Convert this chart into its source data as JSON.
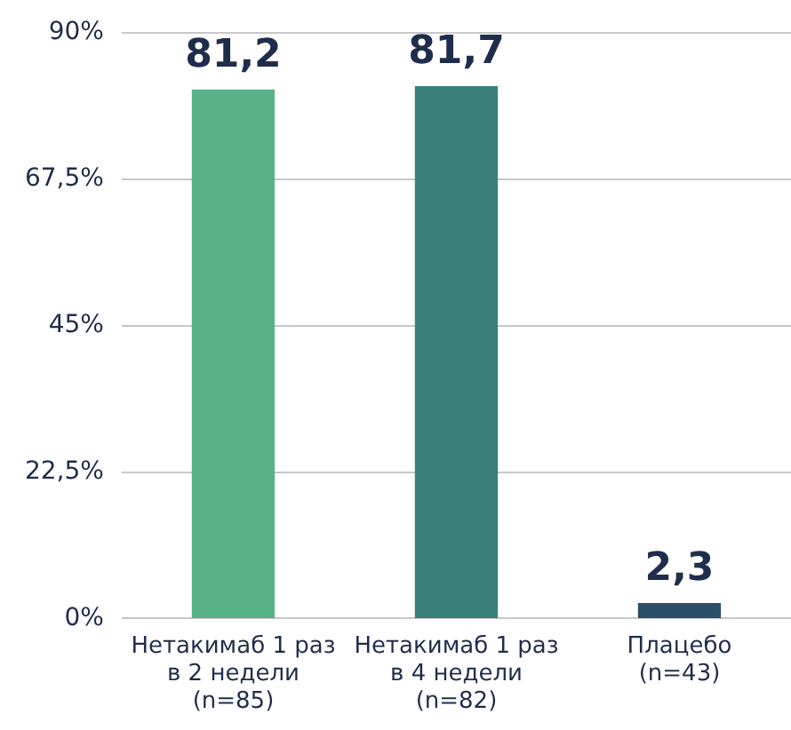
{
  "chart_data": {
    "type": "bar",
    "categories": [
      "Нетакимаб 1 раз\nв 2 недели\n(n=85)",
      "Нетакимаб 1 раз\nв 4 недели\n(n=82)",
      "Плацебо\n(n=43)"
    ],
    "values": [
      81.2,
      81.7,
      2.3
    ],
    "colors": [
      "#58b287",
      "#3b7f7a",
      "#2a4f66"
    ],
    "value_labels": [
      "81,2",
      "81,7",
      "2,3"
    ],
    "ylim": [
      0,
      90
    ],
    "yticks": [
      {
        "value": 0,
        "label": "0%"
      },
      {
        "value": 22.5,
        "label": "22,5%"
      },
      {
        "value": 45,
        "label": "45%"
      },
      {
        "value": 67.5,
        "label": "67,5%"
      },
      {
        "value": 90,
        "label": "90%"
      }
    ],
    "grid": "y",
    "legend": false
  }
}
